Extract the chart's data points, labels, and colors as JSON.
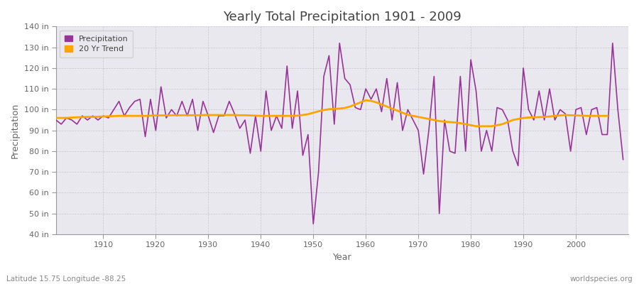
{
  "title": "Yearly Total Precipitation 1901 - 2009",
  "xlabel": "Year",
  "ylabel": "Precipitation",
  "subtitle_left": "Latitude 15.75 Longitude -88.25",
  "subtitle_right": "worldspecies.org",
  "ylim": [
    40,
    140
  ],
  "ytick_step": 10,
  "precip_color": "#993399",
  "trend_color": "#FFA500",
  "fig_bg_color": "#ffffff",
  "plot_bg_color": "#e8e8ee",
  "legend_bg_color": "#e8e8ee",
  "legend_labels": [
    "Precipitation",
    "20 Yr Trend"
  ],
  "years": [
    1901,
    1902,
    1903,
    1904,
    1905,
    1906,
    1907,
    1908,
    1909,
    1910,
    1911,
    1912,
    1913,
    1914,
    1915,
    1916,
    1917,
    1918,
    1919,
    1920,
    1921,
    1922,
    1923,
    1924,
    1925,
    1926,
    1927,
    1928,
    1929,
    1930,
    1931,
    1932,
    1933,
    1934,
    1935,
    1936,
    1937,
    1938,
    1939,
    1940,
    1941,
    1942,
    1943,
    1944,
    1945,
    1946,
    1947,
    1948,
    1949,
    1950,
    1951,
    1952,
    1953,
    1954,
    1955,
    1956,
    1957,
    1958,
    1959,
    1960,
    1961,
    1962,
    1963,
    1964,
    1965,
    1966,
    1967,
    1968,
    1969,
    1970,
    1971,
    1972,
    1973,
    1974,
    1975,
    1976,
    1977,
    1978,
    1979,
    1980,
    1981,
    1982,
    1983,
    1984,
    1985,
    1986,
    1987,
    1988,
    1989,
    1990,
    1991,
    1992,
    1993,
    1994,
    1995,
    1996,
    1997,
    1998,
    1999,
    2000,
    2001,
    2002,
    2003,
    2004,
    2005,
    2006,
    2007,
    2008,
    2009
  ],
  "precip": [
    95,
    93,
    96,
    95,
    93,
    97,
    95,
    97,
    95,
    97,
    96,
    100,
    104,
    97,
    101,
    104,
    105,
    87,
    105,
    90,
    111,
    96,
    100,
    97,
    104,
    97,
    105,
    90,
    104,
    97,
    89,
    97,
    97,
    104,
    98,
    91,
    95,
    79,
    97,
    80,
    109,
    90,
    97,
    91,
    121,
    91,
    109,
    78,
    88,
    45,
    70,
    116,
    126,
    93,
    132,
    115,
    112,
    101,
    100,
    110,
    105,
    110,
    99,
    115,
    95,
    113,
    90,
    100,
    95,
    90,
    69,
    90,
    116,
    50,
    95,
    80,
    79,
    116,
    80,
    124,
    109,
    80,
    90,
    80,
    101,
    100,
    95,
    80,
    73,
    120,
    100,
    95,
    109,
    95,
    110,
    95,
    100,
    98,
    80,
    100,
    101,
    88,
    100,
    101,
    88,
    88,
    132,
    100,
    76
  ],
  "trend": [
    96.0,
    96.0,
    96.0,
    96.2,
    96.3,
    96.4,
    96.5,
    96.5,
    96.6,
    96.7,
    96.8,
    96.9,
    97.0,
    97.0,
    97.0,
    97.0,
    97.0,
    97.0,
    97.1,
    97.2,
    97.2,
    97.2,
    97.3,
    97.3,
    97.3,
    97.3,
    97.3,
    97.3,
    97.4,
    97.4,
    97.4,
    97.4,
    97.4,
    97.4,
    97.4,
    97.3,
    97.3,
    97.2,
    97.1,
    97.0,
    97.0,
    97.0,
    97.0,
    97.0,
    97.0,
    97.0,
    97.1,
    97.4,
    97.8,
    98.5,
    99.2,
    99.8,
    100.2,
    100.4,
    100.5,
    100.8,
    101.5,
    102.5,
    103.5,
    104.5,
    104.2,
    103.5,
    102.5,
    101.5,
    100.5,
    99.5,
    98.5,
    97.5,
    97.0,
    96.5,
    96.0,
    95.5,
    95.0,
    94.5,
    94.2,
    94.0,
    93.8,
    93.5,
    93.0,
    92.5,
    92.0,
    92.0,
    92.0,
    92.0,
    92.5,
    93.0,
    94.0,
    95.0,
    95.5,
    96.0,
    96.2,
    96.3,
    96.4,
    96.5,
    96.7,
    97.0,
    97.2,
    97.4,
    97.3,
    97.2,
    97.1,
    97.0,
    97.0,
    97.0,
    97.0,
    97.0,
    null,
    null,
    null
  ]
}
